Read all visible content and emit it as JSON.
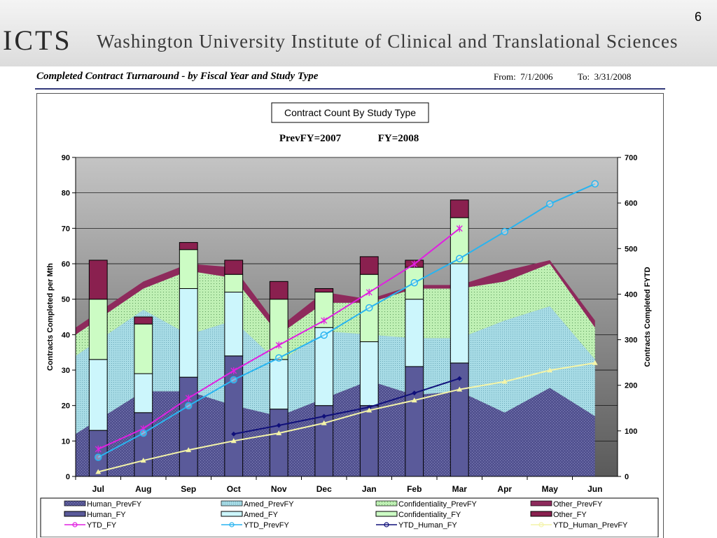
{
  "slide": {
    "number": "6"
  },
  "header": {
    "logo_text": "ICTS",
    "institution": "Washington University Institute of Clinical and Translational Sciences"
  },
  "report": {
    "title": "Completed Contract Turnaround - by Fiscal Year and Study Type",
    "from_label": "From:",
    "from_date": "7/1/2006",
    "to_label": "To:",
    "to_date": "3/31/2008"
  },
  "chart_data": {
    "type": "bar",
    "title": "Contract Count By Study Type",
    "subtitle_prev": "PrevFY=2007",
    "subtitle_fy": "FY=2008",
    "categories": [
      "Jul",
      "Aug",
      "Sep",
      "Oct",
      "Nov",
      "Dec",
      "Jan",
      "Feb",
      "Mar",
      "Apr",
      "May",
      "Jun"
    ],
    "ylabel": "Contracts Completed per Mth",
    "y2label": "Contracts Completed FYTD",
    "ylim": [
      0,
      90
    ],
    "y2lim": [
      0,
      700
    ],
    "yticks": [
      0,
      10,
      20,
      30,
      40,
      50,
      60,
      70,
      80,
      90
    ],
    "y2ticks": [
      0,
      100,
      200,
      300,
      400,
      500,
      600,
      700
    ],
    "grid": true,
    "legend_position": "bottom",
    "area_series": [
      {
        "name": "Human_PrevFY",
        "values": [
          12,
          24,
          24,
          20,
          17,
          22,
          27,
          23,
          24,
          18,
          25,
          17
        ]
      },
      {
        "name": "Amed_PrevFY",
        "values": [
          22,
          23,
          16,
          24,
          15,
          19,
          13,
          16,
          15,
          26,
          23,
          16
        ]
      },
      {
        "name": "Confidentiality_PrevFY",
        "values": [
          6,
          6,
          18,
          12,
          8,
          8,
          9,
          14,
          14,
          11,
          12,
          9
        ]
      },
      {
        "name": "Other_PrevFY",
        "values": [
          2,
          2,
          2,
          3,
          2,
          3,
          1,
          1,
          1,
          3,
          1,
          2
        ]
      }
    ],
    "bar_series": [
      {
        "name": "Human_FY",
        "values": [
          13,
          18,
          28,
          34,
          19,
          20,
          20,
          31,
          32,
          null,
          null,
          null
        ]
      },
      {
        "name": "Amed_FY",
        "values": [
          20,
          11,
          25,
          18,
          14,
          22,
          18,
          19,
          28,
          null,
          null,
          null
        ]
      },
      {
        "name": "Confidentiality_FY",
        "values": [
          17,
          14,
          11,
          5,
          17,
          10,
          19,
          9,
          13,
          null,
          null,
          null
        ]
      },
      {
        "name": "Other_FY",
        "values": [
          11,
          2,
          2,
          4,
          5,
          1,
          5,
          2,
          5,
          null,
          null,
          null
        ]
      }
    ],
    "line_series": [
      {
        "name": "YTD_FY",
        "values": [
          60,
          105,
          172,
          232,
          288,
          342,
          404,
          466,
          544,
          null,
          null,
          null
        ]
      },
      {
        "name": "YTD_PrevFY",
        "values": [
          42,
          95,
          155,
          212,
          260,
          310,
          370,
          425,
          478,
          537,
          598,
          642
        ]
      },
      {
        "name": "YTD_Human_FY",
        "values": [
          null,
          null,
          null,
          93,
          112,
          132,
          152,
          183,
          215,
          null,
          null,
          null
        ]
      },
      {
        "name": "YTD_Human_PrevFY",
        "values": [
          10,
          35,
          58,
          78,
          95,
          117,
          145,
          167,
          191,
          208,
          233,
          249
        ]
      }
    ],
    "colors": {
      "Human_PrevFY": "#525290",
      "Amed_PrevFY": "#a8dce6",
      "Confidentiality_PrevFY": "#bff0b4",
      "Other_PrevFY": "#8e2a5c",
      "Human_FY": "#5a5a9a",
      "Amed_FY": "#ccf6fc",
      "Confidentiality_FY": "#ccfcc4",
      "Other_FY": "#8a204f",
      "YTD_FY": "#e020e0",
      "YTD_PrevFY": "#28b4f0",
      "YTD_Human_FY": "#10107a",
      "YTD_Human_PrevFY": "#f4f4a8"
    }
  }
}
